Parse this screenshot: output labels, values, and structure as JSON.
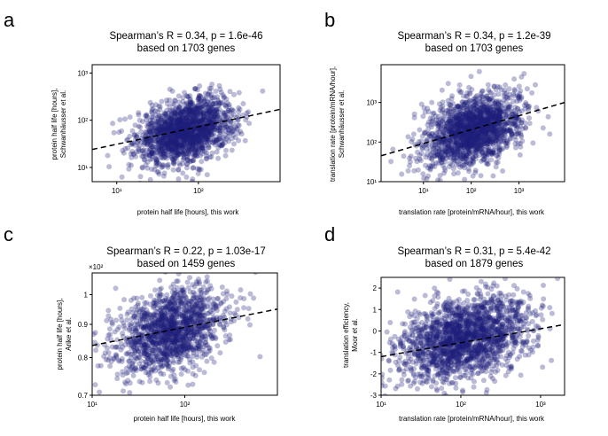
{
  "chart_data": [
    {
      "panel": "a",
      "type": "scatter",
      "title": "Spearman’s R = 0.34, p = 1.6e-46",
      "subtitle": "based on 1703 genes",
      "xlabel": "protein half life [hours], this work",
      "ylabel": [
        "protein half life [hours],",
        "Schwanhäusser et al."
      ],
      "xscale": "log",
      "yscale": "log",
      "xlim": [
        5,
        1000
      ],
      "ylim": [
        5,
        1500
      ],
      "xticks": [
        {
          "v": 10,
          "label": "10¹"
        },
        {
          "v": 100,
          "label": "10²"
        }
      ],
      "yticks": [
        {
          "v": 10,
          "label": "10¹"
        },
        {
          "v": 100,
          "label": "10²"
        },
        {
          "v": 1000,
          "label": "10³"
        }
      ],
      "n_points": 1703,
      "x_center": 70,
      "x_spread_log10": 0.3,
      "y_center": 60,
      "y_spread_log10": 0.35,
      "fit_line": {
        "x": [
          5,
          1000
        ],
        "y": [
          24,
          170
        ]
      }
    },
    {
      "panel": "b",
      "type": "scatter",
      "title": "Spearman’s R = 0.34, p = 1.2e-39",
      "subtitle": "based on 1703 genes",
      "xlabel": "translation rate [protein/mRNA/hour], this work",
      "ylabel": [
        "translation rate [protein/mRNA/hour],",
        "Schwanhäusser et al."
      ],
      "xscale": "log",
      "yscale": "log",
      "xlim": [
        1.3,
        9000
      ],
      "ylim": [
        10,
        9000
      ],
      "xticks": [
        {
          "v": 10,
          "label": "10¹"
        },
        {
          "v": 100,
          "label": "10²"
        },
        {
          "v": 1000,
          "label": "10³"
        }
      ],
      "yticks": [
        {
          "v": 10,
          "label": "10¹"
        },
        {
          "v": 100,
          "label": "10²"
        },
        {
          "v": 1000,
          "label": "10³"
        }
      ],
      "n_points": 1703,
      "x_center": 110,
      "x_spread_log10": 0.5,
      "y_center": 200,
      "y_spread_log10": 0.45,
      "fit_line": {
        "x": [
          1.3,
          9000
        ],
        "y": [
          45,
          1000
        ]
      }
    },
    {
      "panel": "c",
      "type": "scatter",
      "title": "Spearman’s R = 0.22, p = 1.03e-17",
      "subtitle": "based on 1459 genes",
      "xlabel": "protein half life [hours], this work",
      "ylabel": [
        "protein half life [hours],",
        "Arike et al."
      ],
      "xscale": "log",
      "yscale": "log",
      "xlim": [
        10,
        1000
      ],
      "ylim": [
        70,
        108
      ],
      "y_multiplier_label": "×10²",
      "xticks": [
        {
          "v": 10,
          "label": "10¹"
        },
        {
          "v": 100,
          "label": "10²"
        }
      ],
      "yticks": [
        {
          "v": 70,
          "label": "0.7"
        },
        {
          "v": 80,
          "label": "0.8"
        },
        {
          "v": 90,
          "label": "0.9"
        },
        {
          "v": 100,
          "label": "1"
        }
      ],
      "n_points": 1459,
      "x_center": 70,
      "x_spread_log10": 0.3,
      "y_center": 88,
      "y_spread_log10": 0.035,
      "fit_line": {
        "x": [
          10,
          1000
        ],
        "y": [
          83.5,
          95
        ]
      }
    },
    {
      "panel": "d",
      "type": "scatter",
      "title": "Spearman’s R = 0.31, p = 5.4e-42",
      "subtitle": "based on 1879 genes",
      "xlabel": "translation rate [protein/mRNA/hour], this work",
      "ylabel": [
        "translation efficiency,",
        "Moor et al."
      ],
      "xscale": "log",
      "yscale": "linear",
      "xlim": [
        10,
        2000
      ],
      "ylim": [
        -3,
        2.5
      ],
      "xticks": [
        {
          "v": 10,
          "label": "10¹"
        },
        {
          "v": 100,
          "label": "10²"
        },
        {
          "v": 1000,
          "label": "10³"
        }
      ],
      "yticks": [
        {
          "v": -3,
          "label": "-3"
        },
        {
          "v": -2,
          "label": "-2"
        },
        {
          "v": -1,
          "label": "-1"
        },
        {
          "v": 0,
          "label": "0"
        },
        {
          "v": 1,
          "label": "1"
        },
        {
          "v": 2,
          "label": "2"
        }
      ],
      "n_points": 1879,
      "x_center": 110,
      "x_spread_log10": 0.4,
      "y_center": -0.3,
      "y_spread": 1.0,
      "fit_line": {
        "x": [
          10,
          2000
        ],
        "y": [
          -1.2,
          0.3
        ]
      }
    }
  ],
  "style": {
    "point_color": "#1f1f7a",
    "point_opacity": 0.3,
    "fit_line_color": "#000000"
  }
}
